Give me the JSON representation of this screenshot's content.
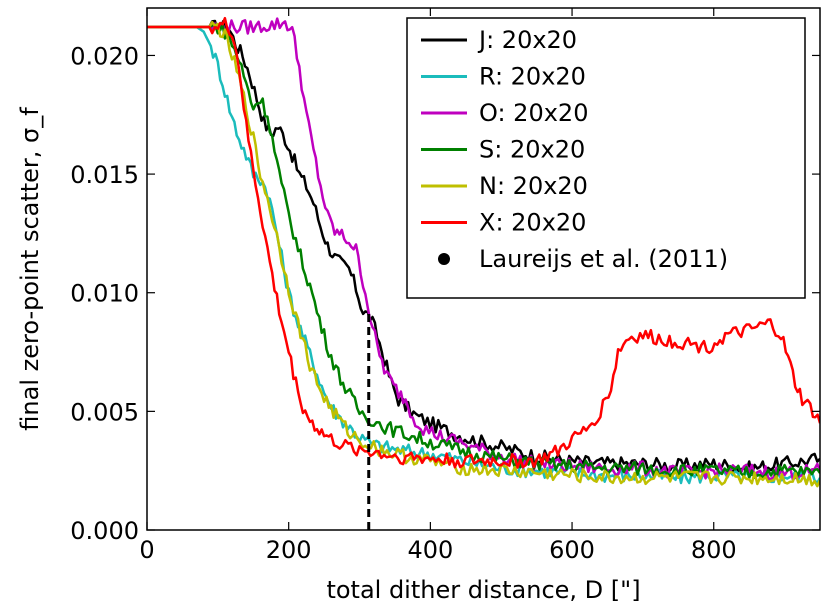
{
  "chart_data": {
    "type": "line",
    "title": "",
    "xlabel": "total dither distance, D [\"]",
    "ylabel": "final zero-point scatter, σ_f",
    "xlim": [
      0,
      950
    ],
    "ylim": [
      0.0,
      0.022
    ],
    "x_ticks": [
      0,
      200,
      400,
      600,
      800
    ],
    "x_tick_labels": [
      "0",
      "200",
      "400",
      "600",
      "800"
    ],
    "y_ticks": [
      0.0,
      0.005,
      0.01,
      0.015,
      0.02
    ],
    "y_tick_labels": [
      "0.000",
      "0.005",
      "0.010",
      "0.015",
      "0.020"
    ],
    "grid": false,
    "legend_position": "top-right",
    "series": [
      {
        "name": "J: 20x20",
        "color": "#000000",
        "points": [
          [
            0,
            0.0212
          ],
          [
            100,
            0.0212
          ],
          [
            115,
            0.0212
          ],
          [
            125,
            0.0205
          ],
          [
            135,
            0.02
          ],
          [
            145,
            0.0192
          ],
          [
            155,
            0.0182
          ],
          [
            165,
            0.0172
          ],
          [
            175,
            0.0167
          ],
          [
            185,
            0.017
          ],
          [
            195,
            0.0165
          ],
          [
            205,
            0.0158
          ],
          [
            215,
            0.015
          ],
          [
            225,
            0.0145
          ],
          [
            235,
            0.0138
          ],
          [
            245,
            0.0128
          ],
          [
            255,
            0.012
          ],
          [
            265,
            0.0115
          ],
          [
            275,
            0.0112
          ],
          [
            285,
            0.011
          ],
          [
            295,
            0.0102
          ],
          [
            305,
            0.0092
          ],
          [
            315,
            0.009
          ],
          [
            325,
            0.0082
          ],
          [
            335,
            0.0072
          ],
          [
            345,
            0.0062
          ],
          [
            355,
            0.0055
          ],
          [
            365,
            0.0052
          ],
          [
            380,
            0.0048
          ],
          [
            400,
            0.0045
          ],
          [
            430,
            0.0041
          ],
          [
            460,
            0.0038
          ],
          [
            500,
            0.0035
          ],
          [
            550,
            0.0031
          ],
          [
            600,
            0.0029
          ],
          [
            650,
            0.0028
          ],
          [
            700,
            0.0028
          ],
          [
            750,
            0.0027
          ],
          [
            800,
            0.0028
          ],
          [
            850,
            0.0026
          ],
          [
            900,
            0.0028
          ],
          [
            950,
            0.003
          ]
        ]
      },
      {
        "name": "R: 20x20",
        "color": "#1bbcbc",
        "points": [
          [
            0,
            0.0212
          ],
          [
            70,
            0.0212
          ],
          [
            80,
            0.021
          ],
          [
            90,
            0.0204
          ],
          [
            100,
            0.0196
          ],
          [
            110,
            0.0185
          ],
          [
            120,
            0.0174
          ],
          [
            130,
            0.0165
          ],
          [
            140,
            0.0158
          ],
          [
            150,
            0.015
          ],
          [
            160,
            0.0148
          ],
          [
            170,
            0.0143
          ],
          [
            180,
            0.013
          ],
          [
            190,
            0.0115
          ],
          [
            200,
            0.01
          ],
          [
            210,
            0.009
          ],
          [
            220,
            0.0082
          ],
          [
            230,
            0.0074
          ],
          [
            240,
            0.0066
          ],
          [
            250,
            0.0058
          ],
          [
            260,
            0.0052
          ],
          [
            270,
            0.0048
          ],
          [
            280,
            0.0045
          ],
          [
            290,
            0.0042
          ],
          [
            300,
            0.0039
          ],
          [
            320,
            0.0036
          ],
          [
            350,
            0.0034
          ],
          [
            400,
            0.0032
          ],
          [
            450,
            0.0029
          ],
          [
            500,
            0.0026
          ],
          [
            550,
            0.0025
          ],
          [
            600,
            0.0024
          ],
          [
            650,
            0.0023
          ],
          [
            700,
            0.0023
          ],
          [
            750,
            0.0022
          ],
          [
            800,
            0.0023
          ],
          [
            850,
            0.0022
          ],
          [
            900,
            0.0023
          ],
          [
            950,
            0.0022
          ]
        ]
      },
      {
        "name": "O: 20x20",
        "color": "#bf00bf",
        "points": [
          [
            0,
            0.0212
          ],
          [
            100,
            0.0212
          ],
          [
            150,
            0.0212
          ],
          [
            180,
            0.0213
          ],
          [
            195,
            0.0214
          ],
          [
            205,
            0.0211
          ],
          [
            215,
            0.0195
          ],
          [
            225,
            0.0175
          ],
          [
            235,
            0.016
          ],
          [
            245,
            0.0145
          ],
          [
            255,
            0.0132
          ],
          [
            265,
            0.0126
          ],
          [
            275,
            0.0124
          ],
          [
            285,
            0.0122
          ],
          [
            295,
            0.0118
          ],
          [
            305,
            0.0105
          ],
          [
            315,
            0.009
          ],
          [
            325,
            0.0077
          ],
          [
            335,
            0.0068
          ],
          [
            345,
            0.0062
          ],
          [
            355,
            0.0058
          ],
          [
            365,
            0.0055
          ],
          [
            375,
            0.0048
          ],
          [
            390,
            0.0043
          ],
          [
            410,
            0.004
          ],
          [
            450,
            0.0036
          ],
          [
            500,
            0.0031
          ],
          [
            550,
            0.0028
          ],
          [
            600,
            0.0027
          ],
          [
            650,
            0.0026
          ],
          [
            700,
            0.0026
          ],
          [
            750,
            0.0024
          ],
          [
            800,
            0.0025
          ],
          [
            850,
            0.0025
          ],
          [
            900,
            0.0024
          ],
          [
            950,
            0.0025
          ]
        ]
      },
      {
        "name": "S: 20x20",
        "color": "#008000",
        "points": [
          [
            0,
            0.0212
          ],
          [
            100,
            0.0212
          ],
          [
            110,
            0.021
          ],
          [
            120,
            0.0205
          ],
          [
            130,
            0.0198
          ],
          [
            140,
            0.0188
          ],
          [
            150,
            0.0178
          ],
          [
            160,
            0.0182
          ],
          [
            170,
            0.0175
          ],
          [
            180,
            0.016
          ],
          [
            190,
            0.0145
          ],
          [
            200,
            0.0133
          ],
          [
            210,
            0.0122
          ],
          [
            220,
            0.0112
          ],
          [
            230,
            0.0103
          ],
          [
            240,
            0.0092
          ],
          [
            250,
            0.0082
          ],
          [
            260,
            0.0073
          ],
          [
            270,
            0.0066
          ],
          [
            280,
            0.006
          ],
          [
            290,
            0.0055
          ],
          [
            300,
            0.005
          ],
          [
            320,
            0.0046
          ],
          [
            340,
            0.0043
          ],
          [
            370,
            0.004
          ],
          [
            400,
            0.0037
          ],
          [
            450,
            0.0033
          ],
          [
            500,
            0.003
          ],
          [
            550,
            0.0028
          ],
          [
            600,
            0.0027
          ],
          [
            650,
            0.0026
          ],
          [
            700,
            0.0026
          ],
          [
            750,
            0.0025
          ],
          [
            800,
            0.0025
          ],
          [
            850,
            0.0024
          ],
          [
            900,
            0.0025
          ],
          [
            950,
            0.0024
          ]
        ]
      },
      {
        "name": "N: 20x20",
        "color": "#bfbf00",
        "points": [
          [
            0,
            0.0212
          ],
          [
            100,
            0.0212
          ],
          [
            110,
            0.0208
          ],
          [
            120,
            0.02
          ],
          [
            130,
            0.019
          ],
          [
            140,
            0.0178
          ],
          [
            150,
            0.0165
          ],
          [
            160,
            0.015
          ],
          [
            170,
            0.014
          ],
          [
            180,
            0.0128
          ],
          [
            190,
            0.0115
          ],
          [
            200,
            0.0102
          ],
          [
            210,
            0.009
          ],
          [
            220,
            0.008
          ],
          [
            230,
            0.007
          ],
          [
            240,
            0.0062
          ],
          [
            250,
            0.0056
          ],
          [
            260,
            0.0051
          ],
          [
            270,
            0.0047
          ],
          [
            280,
            0.0043
          ],
          [
            290,
            0.004
          ],
          [
            300,
            0.0038
          ],
          [
            320,
            0.0035
          ],
          [
            350,
            0.0032
          ],
          [
            400,
            0.0029
          ],
          [
            450,
            0.0026
          ],
          [
            500,
            0.0025
          ],
          [
            550,
            0.0024
          ],
          [
            600,
            0.0023
          ],
          [
            650,
            0.0022
          ],
          [
            700,
            0.0022
          ],
          [
            750,
            0.0022
          ],
          [
            800,
            0.0022
          ],
          [
            850,
            0.0022
          ],
          [
            900,
            0.0022
          ],
          [
            950,
            0.0021
          ]
        ]
      },
      {
        "name": "X: 20x20",
        "color": "#ff0000",
        "points": [
          [
            0,
            0.0212
          ],
          [
            100,
            0.0212
          ],
          [
            110,
            0.0213
          ],
          [
            120,
            0.021
          ],
          [
            130,
            0.0195
          ],
          [
            140,
            0.017
          ],
          [
            150,
            0.0152
          ],
          [
            160,
            0.0135
          ],
          [
            170,
            0.0118
          ],
          [
            180,
            0.0102
          ],
          [
            190,
            0.0088
          ],
          [
            200,
            0.0075
          ],
          [
            210,
            0.0062
          ],
          [
            220,
            0.0052
          ],
          [
            230,
            0.0046
          ],
          [
            240,
            0.0043
          ],
          [
            250,
            0.004
          ],
          [
            260,
            0.0038
          ],
          [
            280,
            0.0035
          ],
          [
            300,
            0.0034
          ],
          [
            350,
            0.0031
          ],
          [
            400,
            0.003
          ],
          [
            450,
            0.0029
          ],
          [
            500,
            0.0029
          ],
          [
            550,
            0.0029
          ],
          [
            580,
            0.0033
          ],
          [
            600,
            0.0038
          ],
          [
            620,
            0.0042
          ],
          [
            640,
            0.005
          ],
          [
            655,
            0.006
          ],
          [
            665,
            0.0075
          ],
          [
            680,
            0.0081
          ],
          [
            700,
            0.0082
          ],
          [
            730,
            0.008
          ],
          [
            760,
            0.0079
          ],
          [
            790,
            0.0077
          ],
          [
            820,
            0.0082
          ],
          [
            850,
            0.0084
          ],
          [
            880,
            0.0087
          ],
          [
            895,
            0.0082
          ],
          [
            905,
            0.0072
          ],
          [
            915,
            0.0062
          ],
          [
            925,
            0.0055
          ],
          [
            940,
            0.005
          ],
          [
            950,
            0.0045
          ]
        ]
      }
    ],
    "annotations": [
      {
        "type": "vline-dashed",
        "x": 313,
        "y_from": 0.0,
        "y_to": 0.0092,
        "color": "#000000"
      }
    ],
    "legend_extra": [
      {
        "name": "Laureijs et al. (2011)",
        "marker": "circle",
        "color": "#000000"
      }
    ]
  }
}
